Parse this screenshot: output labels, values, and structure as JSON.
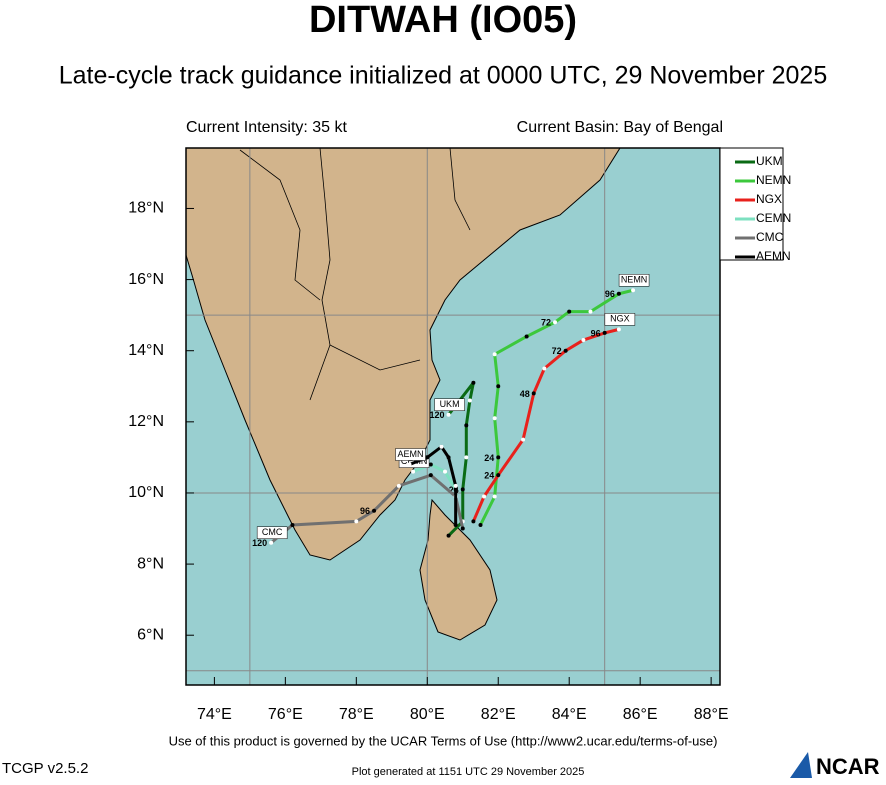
{
  "header": {
    "title": "DITWAH (IO05)",
    "subtitle": "Late-cycle track guidance initialized at 0000 UTC, 29 November 2025",
    "intensity": "Current Intensity: 35 kt",
    "basin": "Current Basin: Bay of Bengal"
  },
  "map": {
    "lonlim": [
      73.2,
      88.25
    ],
    "latlim": [
      4.6,
      19.7
    ],
    "lonticks": [
      {
        "value": 74,
        "label": "74°E"
      },
      {
        "value": 76,
        "label": "76°E"
      },
      {
        "value": 78,
        "label": "78°E"
      },
      {
        "value": 80,
        "label": "80°E"
      },
      {
        "value": 82,
        "label": "82°E"
      },
      {
        "value": 84,
        "label": "84°E"
      },
      {
        "value": 86,
        "label": "86°E"
      },
      {
        "value": 88,
        "label": "88°E"
      }
    ],
    "latticks": [
      {
        "value": 6,
        "label": "6°N"
      },
      {
        "value": 8,
        "label": "8°N"
      },
      {
        "value": 10,
        "label": "10°N"
      },
      {
        "value": 12,
        "label": "12°N"
      },
      {
        "value": 14,
        "label": "14°N"
      },
      {
        "value": 16,
        "label": "16°N"
      },
      {
        "value": 18,
        "label": "18°N"
      }
    ],
    "grid_lons": [
      75,
      80,
      85
    ],
    "grid_lats": [
      5,
      10,
      15
    ],
    "tracks": [
      {
        "name": "UKM",
        "color": "#0a6a14",
        "points": [
          {
            "lon": 80.6,
            "lat": 8.8
          },
          {
            "lon": 81.0,
            "lat": 9.2
          },
          {
            "lon": 81.0,
            "lat": 10.1,
            "hour": "24"
          },
          {
            "lon": 81.1,
            "lat": 11.0
          },
          {
            "lon": 81.1,
            "lat": 11.9
          },
          {
            "lon": 81.2,
            "lat": 12.6
          },
          {
            "lon": 81.3,
            "lat": 13.1
          },
          {
            "lon": 80.6,
            "lat": 12.2,
            "hour": "120"
          }
        ]
      },
      {
        "name": "NEMN",
        "color": "#3cc83c",
        "points": [
          {
            "lon": 81.5,
            "lat": 9.1
          },
          {
            "lon": 81.9,
            "lat": 9.9
          },
          {
            "lon": 82.0,
            "lat": 11.0,
            "hour": "24"
          },
          {
            "lon": 81.9,
            "lat": 12.1
          },
          {
            "lon": 82.0,
            "lat": 13.0
          },
          {
            "lon": 81.9,
            "lat": 13.9
          },
          {
            "lon": 82.8,
            "lat": 14.4
          },
          {
            "lon": 83.6,
            "lat": 14.8,
            "hour": "72"
          },
          {
            "lon": 84.0,
            "lat": 15.1
          },
          {
            "lon": 84.6,
            "lat": 15.1
          },
          {
            "lon": 85.4,
            "lat": 15.6,
            "hour": "96"
          },
          {
            "lon": 85.8,
            "lat": 15.7
          }
        ]
      },
      {
        "name": "NGX",
        "color": "#e8211c",
        "points": [
          {
            "lon": 81.3,
            "lat": 9.2
          },
          {
            "lon": 81.6,
            "lat": 9.9
          },
          {
            "lon": 82.0,
            "lat": 10.5,
            "hour": "24"
          },
          {
            "lon": 82.7,
            "lat": 11.5
          },
          {
            "lon": 83.0,
            "lat": 12.8,
            "hour": "48"
          },
          {
            "lon": 83.3,
            "lat": 13.5
          },
          {
            "lon": 83.9,
            "lat": 14.0,
            "hour": "72"
          },
          {
            "lon": 84.4,
            "lat": 14.3
          },
          {
            "lon": 85.0,
            "lat": 14.5,
            "hour": "96"
          },
          {
            "lon": 85.4,
            "lat": 14.6
          }
        ]
      },
      {
        "name": "CEMN",
        "color": "#7de0c0",
        "points": [
          {
            "lon": 80.8,
            "lat": 10.1
          },
          {
            "lon": 80.5,
            "lat": 10.6
          },
          {
            "lon": 80.1,
            "lat": 10.8
          },
          {
            "lon": 79.6,
            "lat": 10.6
          }
        ]
      },
      {
        "name": "CMC",
        "color": "#707070",
        "points": [
          {
            "lon": 81.0,
            "lat": 9.0
          },
          {
            "lon": 80.8,
            "lat": 9.9
          },
          {
            "lon": 80.1,
            "lat": 10.5
          },
          {
            "lon": 79.2,
            "lat": 10.2
          },
          {
            "lon": 78.5,
            "lat": 9.5,
            "hour": "96"
          },
          {
            "lon": 78.0,
            "lat": 9.2
          },
          {
            "lon": 76.2,
            "lat": 9.1
          },
          {
            "lon": 75.6,
            "lat": 8.6,
            "hour": "120"
          }
        ]
      },
      {
        "name": "AEMN",
        "color": "#000000",
        "points": [
          {
            "lon": 80.8,
            "lat": 9.1
          },
          {
            "lon": 80.8,
            "lat": 10.2
          },
          {
            "lon": 80.6,
            "lat": 11.0
          },
          {
            "lon": 80.4,
            "lat": 11.3
          },
          {
            "lon": 80.0,
            "lat": 11.0
          },
          {
            "lon": 79.5,
            "lat": 10.8
          }
        ]
      }
    ]
  },
  "footer": {
    "terms": "Use of this product is governed by the UCAR Terms of Use (http://www2.ucar.edu/terms-of-use)",
    "version": "TCGP v2.5.2",
    "generated": "Plot generated at 1151 UTC   29 November 2025",
    "logo": "NCAR"
  }
}
